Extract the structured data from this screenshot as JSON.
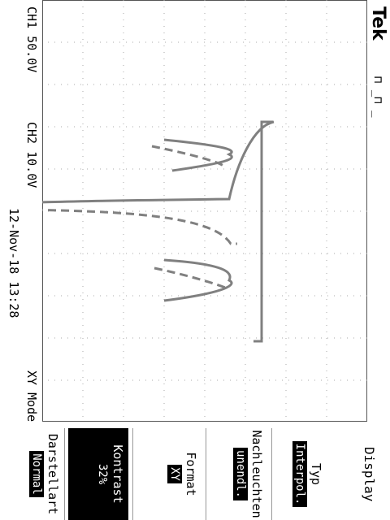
{
  "header": {
    "brand": "Tek",
    "trigger_symbol": "⊓ ̲⊓ ̲",
    "ch1": "CH1  50.0V",
    "ch2": "CH2  10.0V",
    "mode": "XY Mode",
    "timestamp": "12-Nov-18  13:28"
  },
  "menu": {
    "title": "Display",
    "items": [
      {
        "label": "Typ",
        "value": "Interpol."
      },
      {
        "label": "Nachleuchten",
        "value": "unendl."
      },
      {
        "label": "Format",
        "value": "XY"
      },
      {
        "label": "Kontrast",
        "value": "32%"
      },
      {
        "label": "Darstellart",
        "value": "Normal"
      }
    ]
  },
  "colors": {
    "trace": "#808080",
    "grid": "#aaaaaa",
    "selected_bg": "#000000"
  }
}
